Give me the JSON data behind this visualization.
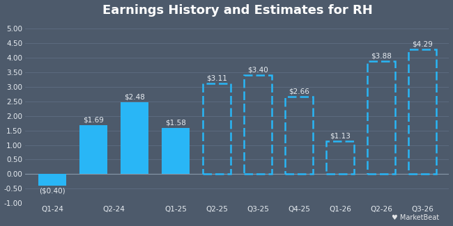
{
  "title": "Earnings History and Estimates for RH",
  "background_color": "#4d5a6b",
  "bar_data": [
    {
      "x": 0,
      "value": -0.4,
      "label": "($0.40)",
      "type": "solid"
    },
    {
      "x": 1,
      "value": 1.69,
      "label": "$1.69",
      "type": "solid"
    },
    {
      "x": 2,
      "value": 2.48,
      "label": "$2.48",
      "type": "solid"
    },
    {
      "x": 3,
      "value": 1.58,
      "label": "$1.58",
      "type": "solid"
    },
    {
      "x": 4,
      "value": 3.11,
      "label": "$3.11",
      "type": "dashed"
    },
    {
      "x": 5,
      "value": 3.4,
      "label": "$3.40",
      "type": "dashed"
    },
    {
      "x": 6,
      "value": 2.66,
      "label": "$2.66",
      "type": "dashed"
    },
    {
      "x": 7,
      "value": 1.13,
      "label": "$1.13",
      "type": "dashed"
    },
    {
      "x": 8,
      "value": 3.88,
      "label": "$3.88",
      "type": "dashed"
    },
    {
      "x": 9,
      "value": 4.29,
      "label": "$4.29",
      "type": "dashed"
    }
  ],
  "xtick_positions": [
    0,
    1.5,
    3,
    4,
    5,
    6,
    7,
    8,
    9
  ],
  "xtick_labels": [
    "Q1-24",
    "Q2-24",
    "Q1-25",
    "Q2-25",
    "Q3-25",
    "Q4-25",
    "Q1-26",
    "Q2-26",
    "Q3-26"
  ],
  "ylim": [
    -1.0,
    5.25
  ],
  "ytick_values": [
    -1.0,
    -0.5,
    0.0,
    0.5,
    1.0,
    1.5,
    2.0,
    2.5,
    3.0,
    3.5,
    4.0,
    4.5,
    5.0
  ],
  "ytick_labels": [
    "-1.00",
    "-0.50",
    "0.00",
    "0.50",
    "1.00",
    "1.50",
    "2.00",
    "2.50",
    "3.00",
    "3.50",
    "4.00",
    "4.50",
    "5.00"
  ],
  "solid_color": "#29b6f6",
  "dashed_color": "#29b6f6",
  "text_color": "#e8edf2",
  "grid_color": "#5e6e82",
  "title_fontsize": 13,
  "label_fontsize": 7.5,
  "tick_fontsize": 7.5,
  "bar_width": 0.68,
  "xlim_left": -0.65,
  "xlim_right": 9.65
}
